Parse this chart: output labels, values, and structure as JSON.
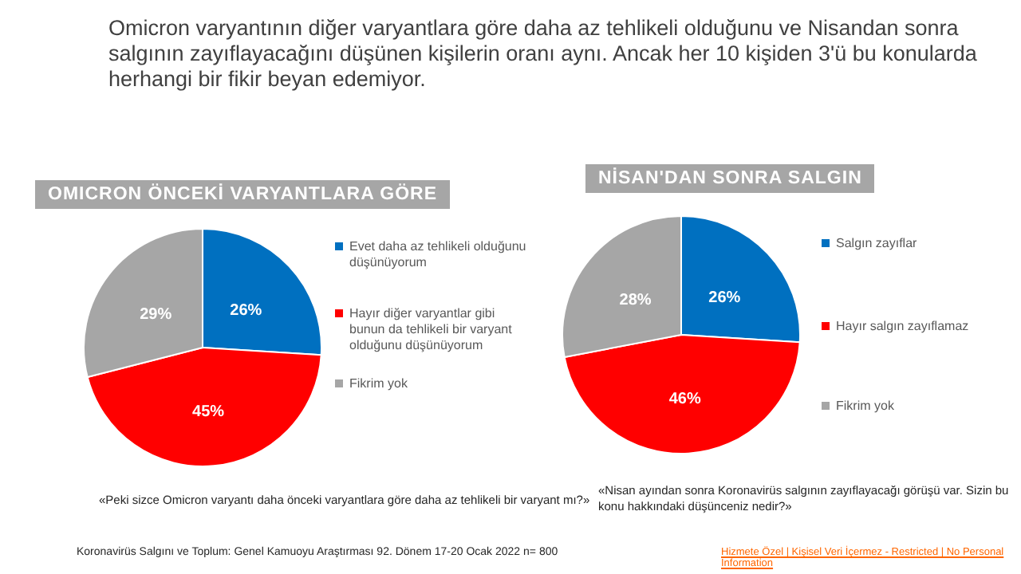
{
  "chart_data": [
    {
      "type": "pie",
      "title": "OMICRON ÖNCEKİ VARYANTLARA GÖRE",
      "categories": [
        "Evet daha az tehlikeli olduğunu düşünüyorum",
        "Hayır diğer varyantlar gibi bunun da tehlikeli bir varyant olduğunu düşünüyorum",
        "Fikrim yok"
      ],
      "values": [
        26,
        45,
        29
      ],
      "colors": [
        "#0070c0",
        "#ff0000",
        "#a6a6a6"
      ],
      "value_labels": [
        "26%",
        "45%",
        "29%"
      ],
      "legend": "right",
      "annotations": [
        "Omicron varyantının diğer varyantlara göre daha az tehlikeli olduğunu ve Nisandan sonra salgının zayıflayacağını düşünen kişilerin oranı aynı. Ancak her 10 kişiden 3'ü bu konularda herhangi bir fikir beyan edemiyor.",
        "«Peki sizce Omicron varyantı daha önceki varyantlara göre daha az tehlikeli bir varyant mı?»",
        "Koronavirüs  Salgını ve Toplum:  Genel Kamuoyu Araştırması 92. Dönem  17-20  Ocak 2022  n= 800"
      ]
    },
    {
      "type": "pie",
      "title": "NİSAN'DAN SONRA SALGIN",
      "categories": [
        "Salgın zayıflar",
        "Hayır salgın zayıflamaz",
        "Fikrim yok"
      ],
      "values": [
        26,
        46,
        28
      ],
      "colors": [
        "#0070c0",
        "#ff0000",
        "#a6a6a6"
      ],
      "value_labels": [
        "26%",
        "46%",
        "28%"
      ],
      "legend": "right",
      "annotations": [
        "«Nisan ayından  sonra Koronavirüs salgının  zayıflayacağı  görüşü var. Sizin bu konu hakkındaki  düşünceniz nedir?»",
        "Hizmete Özel | Kişisel Veri İçermez - Restricted | No Personal Information"
      ]
    }
  ]
}
